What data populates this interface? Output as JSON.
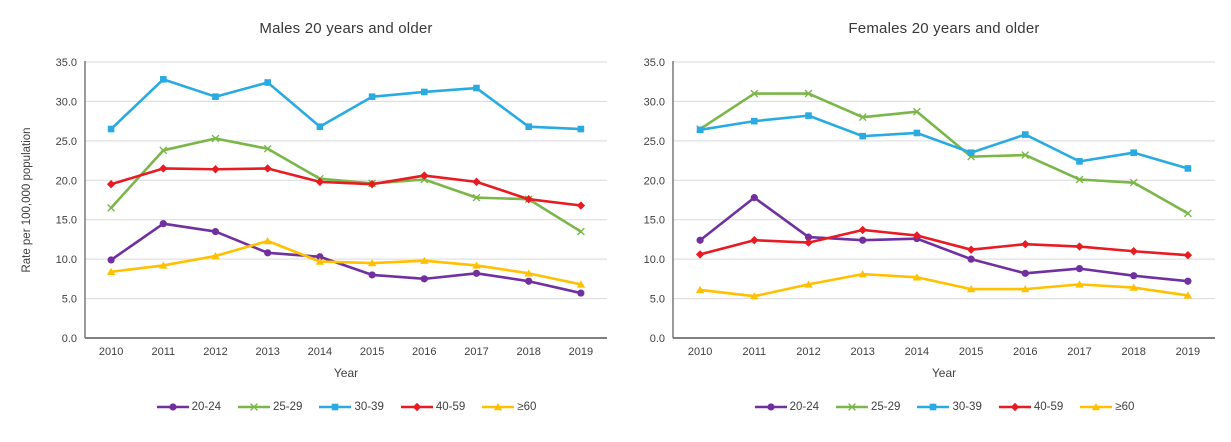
{
  "figure": {
    "background": "#ffffff",
    "grid_color": "#D9D9D9",
    "axis_color": "#6E6E6E",
    "text_color": "#404040"
  },
  "chart_data": [
    {
      "type": "line",
      "title": "Males 20 years and older",
      "xlabel": "Year",
      "ylabel": "Rate per 100,000 population",
      "ylim": [
        0,
        35
      ],
      "yticks": [
        0,
        5,
        10,
        15,
        20,
        25,
        30,
        35
      ],
      "ytick_labels": [
        "0.0",
        "5.0",
        "10.0",
        "15.0",
        "20.0",
        "25.0",
        "30.0",
        "35.0"
      ],
      "categories": [
        "2010",
        "2011",
        "2012",
        "2013",
        "2014",
        "2015",
        "2016",
        "2017",
        "2018",
        "2019"
      ],
      "grid": true,
      "legend_position": "bottom",
      "series": [
        {
          "name": "20-24",
          "color": "#7030A0",
          "marker": "circle",
          "values": [
            9.9,
            14.5,
            13.5,
            10.8,
            10.3,
            8.0,
            7.5,
            8.2,
            7.2,
            5.7
          ]
        },
        {
          "name": "25-29",
          "color": "#7AB648",
          "marker": "x",
          "values": [
            16.5,
            23.8,
            25.3,
            24.0,
            20.2,
            19.6,
            20.1,
            17.8,
            17.6,
            13.5
          ]
        },
        {
          "name": "30-39",
          "color": "#29ABE2",
          "marker": "square",
          "values": [
            26.5,
            32.8,
            30.6,
            32.4,
            26.8,
            30.6,
            31.2,
            31.7,
            26.8,
            26.5
          ]
        },
        {
          "name": "40-59",
          "color": "#E81B23",
          "marker": "diamond",
          "values": [
            19.5,
            21.5,
            21.4,
            21.5,
            19.8,
            19.5,
            20.6,
            19.8,
            17.6,
            16.8
          ]
        },
        {
          "name": "≥60",
          "color": "#FFC000",
          "marker": "triangle",
          "values": [
            8.4,
            9.2,
            10.4,
            12.3,
            9.7,
            9.5,
            9.8,
            9.2,
            8.2,
            6.8
          ]
        }
      ]
    },
    {
      "type": "line",
      "title": "Females 20 years and older",
      "xlabel": "Year",
      "ylabel": "",
      "ylim": [
        0,
        35
      ],
      "yticks": [
        0,
        5,
        10,
        15,
        20,
        25,
        30,
        35
      ],
      "ytick_labels": [
        "0.0",
        "5.0",
        "10.0",
        "15.0",
        "20.0",
        "25.0",
        "30.0",
        "35.0"
      ],
      "categories": [
        "2010",
        "2011",
        "2012",
        "2013",
        "2014",
        "2015",
        "2016",
        "2017",
        "2018",
        "2019"
      ],
      "grid": true,
      "legend_position": "bottom",
      "series": [
        {
          "name": "20-24",
          "color": "#7030A0",
          "marker": "circle",
          "values": [
            12.4,
            17.8,
            12.8,
            12.4,
            12.6,
            10.0,
            8.2,
            8.8,
            7.9,
            7.2
          ]
        },
        {
          "name": "25-29",
          "color": "#7AB648",
          "marker": "x",
          "values": [
            26.5,
            31.0,
            31.0,
            28.0,
            28.7,
            23.0,
            23.2,
            20.1,
            19.7,
            15.8
          ]
        },
        {
          "name": "30-39",
          "color": "#29ABE2",
          "marker": "square",
          "values": [
            26.4,
            27.5,
            28.2,
            25.6,
            26.0,
            23.5,
            25.8,
            22.4,
            23.5,
            21.5
          ]
        },
        {
          "name": "40-59",
          "color": "#E81B23",
          "marker": "diamond",
          "values": [
            10.6,
            12.4,
            12.1,
            13.7,
            13.0,
            11.2,
            11.9,
            11.6,
            11.0,
            10.5
          ]
        },
        {
          "name": "≥60",
          "color": "#FFC000",
          "marker": "triangle",
          "values": [
            6.1,
            5.3,
            6.8,
            8.1,
            7.7,
            6.2,
            6.2,
            6.8,
            6.4,
            5.4
          ]
        }
      ]
    }
  ]
}
